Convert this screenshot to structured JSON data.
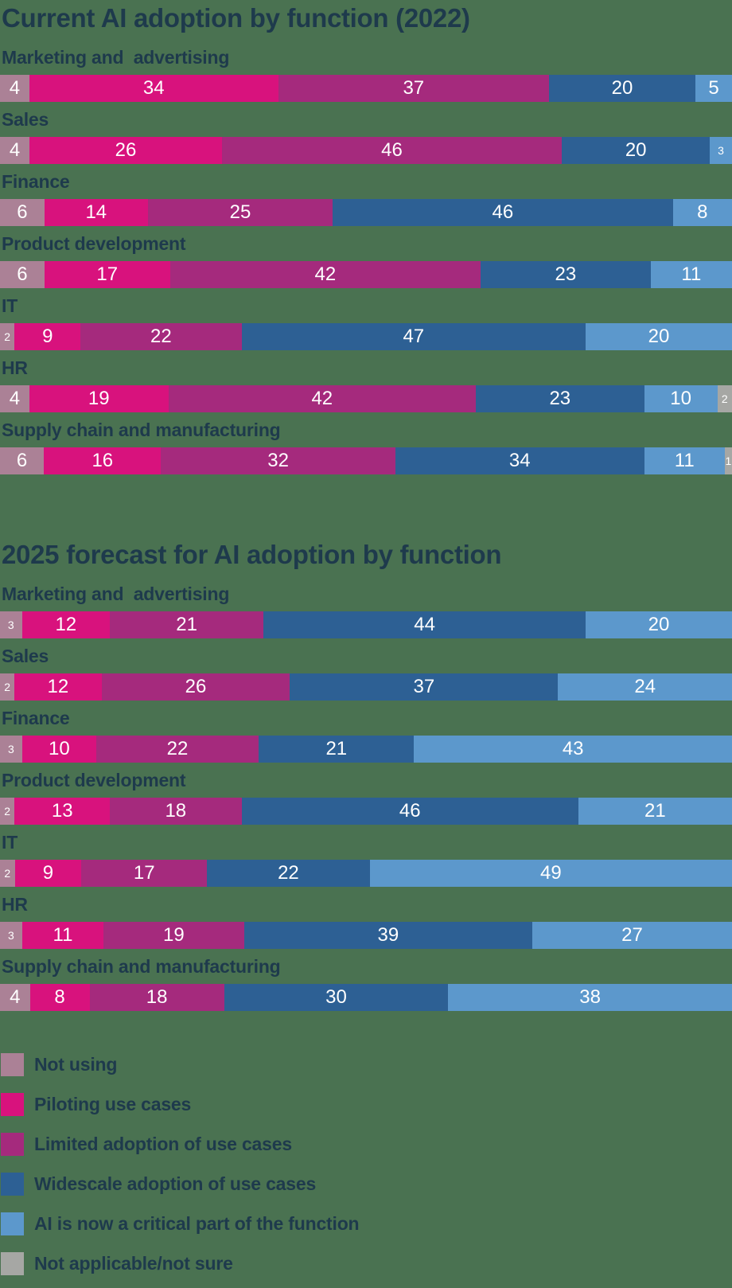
{
  "colors": {
    "background": "#4a7251",
    "text": "#1e3a4c",
    "bar_value_text": "#ffffff",
    "not_using": "#ab8196",
    "piloting": "#d8127d",
    "limited": "#a52a7d",
    "widescale": "#2d6094",
    "critical": "#5c98cc",
    "na": "#a6a7a4"
  },
  "chart_data": [
    {
      "type": "bar",
      "subtype": "horizontal-stacked-percent",
      "title": "Current AI adoption by function (2022)",
      "series_keys": [
        "not_using",
        "piloting",
        "limited",
        "widescale",
        "critical",
        "na"
      ],
      "series_labels": [
        "Not using",
        "Piloting use cases",
        "Limited adoption of use cases",
        "Widescale adoption of use cases",
        "AI is now a critical part of the function",
        "Not applicable/not sure"
      ],
      "categories": [
        "Marketing and  advertising",
        "Sales",
        "Finance",
        "Product development",
        "IT",
        "HR",
        "Supply chain and manufacturing"
      ],
      "rows": [
        {
          "category": "Marketing and  advertising",
          "values": [
            4,
            34,
            37,
            20,
            5,
            0
          ]
        },
        {
          "category": "Sales",
          "values": [
            4,
            26,
            46,
            20,
            3,
            0
          ]
        },
        {
          "category": "Finance",
          "values": [
            6,
            14,
            25,
            46,
            8,
            0
          ]
        },
        {
          "category": "Product development",
          "values": [
            6,
            17,
            42,
            23,
            11,
            0
          ]
        },
        {
          "category": "IT",
          "values": [
            2,
            9,
            22,
            47,
            20,
            0
          ]
        },
        {
          "category": "HR",
          "values": [
            4,
            19,
            42,
            23,
            10,
            2
          ]
        },
        {
          "category": "Supply chain and manufacturing",
          "values": [
            6,
            16,
            32,
            34,
            11,
            1
          ]
        }
      ],
      "xlim": [
        0,
        100
      ],
      "grid": false,
      "value_labels": "inside-center"
    },
    {
      "type": "bar",
      "subtype": "horizontal-stacked-percent",
      "title": "2025 forecast for AI adoption by function",
      "series_keys": [
        "not_using",
        "piloting",
        "limited",
        "widescale",
        "critical",
        "na"
      ],
      "series_labels": [
        "Not using",
        "Piloting use cases",
        "Limited adoption of use cases",
        "Widescale adoption of use cases",
        "AI is now a critical part of the function",
        "Not applicable/not sure"
      ],
      "categories": [
        "Marketing and  advertising",
        "Sales",
        "Finance",
        "Product development",
        "IT",
        "HR",
        "Supply chain and manufacturing"
      ],
      "rows": [
        {
          "category": "Marketing and  advertising",
          "values": [
            3,
            12,
            21,
            44,
            20,
            0
          ]
        },
        {
          "category": "Sales",
          "values": [
            2,
            12,
            26,
            37,
            24,
            0
          ]
        },
        {
          "category": "Finance",
          "values": [
            3,
            10,
            22,
            21,
            43,
            0
          ]
        },
        {
          "category": "Product development",
          "values": [
            2,
            13,
            18,
            46,
            21,
            0
          ]
        },
        {
          "category": "IT",
          "values": [
            2,
            9,
            17,
            22,
            49,
            0
          ]
        },
        {
          "category": "HR",
          "values": [
            3,
            11,
            19,
            39,
            27,
            0
          ]
        },
        {
          "category": "Supply chain and manufacturing",
          "values": [
            4,
            8,
            18,
            30,
            38,
            0
          ]
        }
      ],
      "xlim": [
        0,
        100
      ],
      "grid": false,
      "value_labels": "inside-center"
    }
  ],
  "legend": {
    "position": "bottom-left",
    "items": [
      {
        "label": "Not using",
        "color_key": "not_using"
      },
      {
        "label": "Piloting use cases",
        "color_key": "piloting"
      },
      {
        "label": "Limited adoption of use cases",
        "color_key": "limited"
      },
      {
        "label": "Widescale adoption of use cases",
        "color_key": "widescale"
      },
      {
        "label": "AI is now a critical part of the function",
        "color_key": "critical"
      },
      {
        "label": "Not applicable/not sure",
        "color_key": "na"
      }
    ]
  },
  "small_value_threshold": 3
}
